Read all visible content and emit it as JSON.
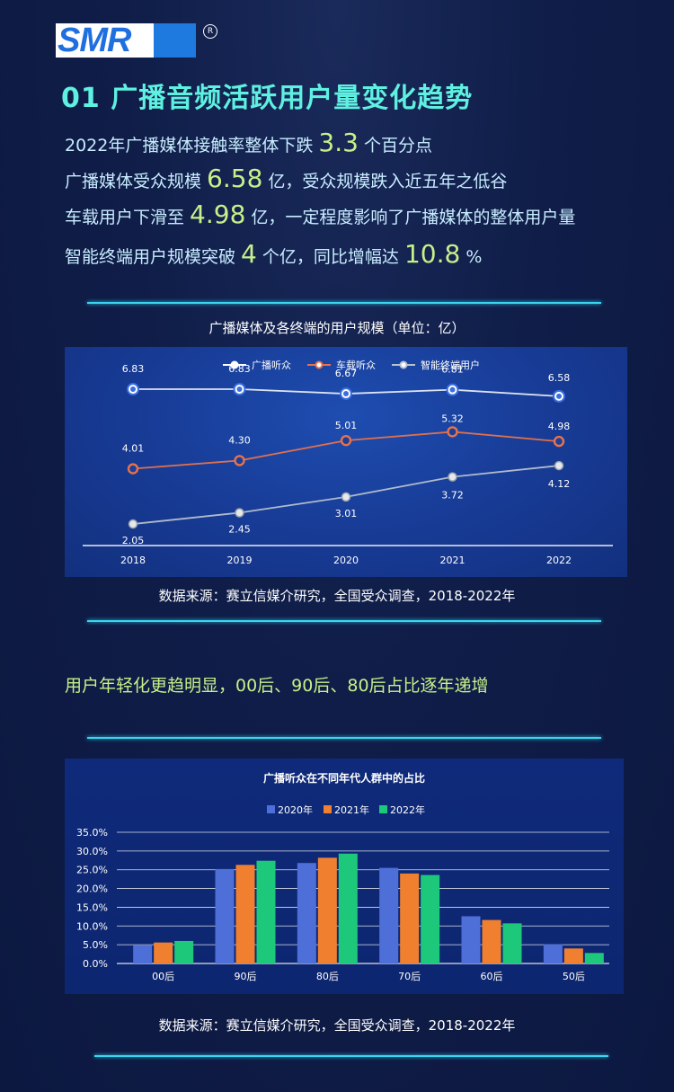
{
  "brand": {
    "logo_text": "SMR",
    "reg_mark": "R"
  },
  "section_title": "01  广播音频活跃用户量变化趋势",
  "bullets": [
    {
      "pre": "2022年广播媒体接触率整体下跌 ",
      "num": "3.3",
      "post": " 个百分点"
    },
    {
      "pre": "广播媒体受众规模 ",
      "num": "6.58",
      "post": " 亿，受众规模跌入近五年之低谷"
    },
    {
      "pre": "车载用户下滑至 ",
      "num": "4.98",
      "post": " 亿，一定程度影响了广播媒体的整体用户量"
    },
    {
      "pre": "智能终端用户规模突破 ",
      "num": "4",
      "post": " 个亿，同比增幅达 ",
      "num2": "10.8",
      "post2": " %"
    }
  ],
  "chart1_caption": "广播媒体及各终端的用户规模（单位：亿）",
  "source1": "数据来源：赛立信媒介研究，全国受众调查，2018-2022年",
  "subhead": "用户年轻化更趋明显，00后、90后、80后占比逐年递增",
  "source2": "数据来源：赛立信媒介研究，全国受众调查，2018-2022年",
  "colors": {
    "accent": "#5ef0e0",
    "highlight": "#c6f08a",
    "line_white": "#ffffff",
    "line_orange": "#e8734a",
    "line_grey": "#b8c2cc",
    "bar_2020": "#4f6fd8",
    "bar_2021": "#f08030",
    "bar_2022": "#1ec87a"
  },
  "chart_data": [
    {
      "type": "line",
      "title": "",
      "x": [
        "2018",
        "2019",
        "2020",
        "2021",
        "2022"
      ],
      "series": [
        {
          "name": "广播听众",
          "values": [
            6.83,
            6.83,
            6.67,
            6.81,
            6.58
          ],
          "color": "#ffffff"
        },
        {
          "name": "车载听众",
          "values": [
            4.01,
            4.3,
            5.01,
            5.32,
            4.98
          ],
          "color": "#e8734a"
        },
        {
          "name": "智能终端用户",
          "values": [
            2.05,
            2.45,
            3.01,
            3.72,
            4.12
          ],
          "color": "#b8c2cc"
        }
      ],
      "ylim": [
        1,
        7.5
      ],
      "grid": false,
      "legend": "top-center"
    },
    {
      "type": "bar",
      "title": "广播听众在不同年代人群中的占比",
      "categories": [
        "00后",
        "90后",
        "80后",
        "70后",
        "60后",
        "50后"
      ],
      "series": [
        {
          "name": "2020年",
          "values": [
            4.8,
            25.2,
            26.8,
            25.5,
            12.6,
            5.1
          ],
          "color": "#4f6fd8"
        },
        {
          "name": "2021年",
          "values": [
            5.6,
            26.3,
            28.2,
            24.0,
            11.6,
            4.0
          ],
          "color": "#f08030"
        },
        {
          "name": "2022年",
          "values": [
            6.0,
            27.4,
            29.3,
            23.6,
            10.7,
            2.8
          ],
          "color": "#1ec87a"
        }
      ],
      "yticks": [
        "35.0%",
        "30.0%",
        "25.0%",
        "20.0%",
        "15.0%",
        "10.0%",
        "5.0%",
        "0.0%"
      ],
      "ylim": [
        0,
        35
      ],
      "grid": true,
      "legend": "top-center"
    }
  ]
}
